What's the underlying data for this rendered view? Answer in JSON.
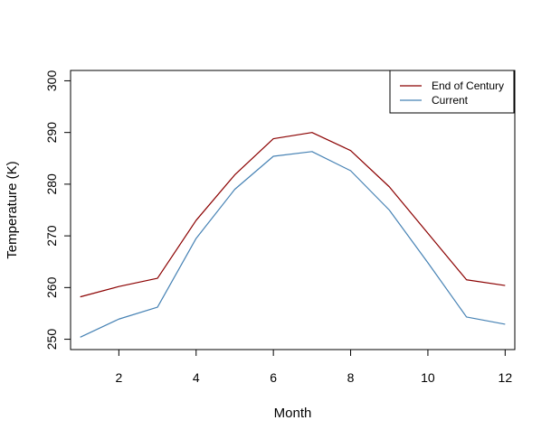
{
  "chart_data": {
    "type": "line",
    "title": "",
    "xlabel": "Month",
    "ylabel": "Temperature (K)",
    "x": [
      1,
      2,
      3,
      4,
      5,
      6,
      7,
      8,
      9,
      10,
      11,
      12
    ],
    "xlim": [
      0.75,
      12.25
    ],
    "ylim": [
      248,
      302
    ],
    "xticks": [
      2,
      4,
      6,
      8,
      10,
      12
    ],
    "yticks": [
      250,
      260,
      270,
      280,
      290,
      300
    ],
    "grid": false,
    "legend_position": "top-right",
    "series": [
      {
        "name": "End of Century",
        "color": "#8b0000",
        "values": [
          258.2,
          260.2,
          261.8,
          273.0,
          281.8,
          288.8,
          290.0,
          286.5,
          279.5,
          270.5,
          261.5,
          260.4
        ]
      },
      {
        "name": "Current",
        "color": "#4682b4",
        "values": [
          250.4,
          253.9,
          256.2,
          269.5,
          279.0,
          285.4,
          286.3,
          282.6,
          275.0,
          264.8,
          254.3,
          252.9
        ]
      }
    ]
  }
}
